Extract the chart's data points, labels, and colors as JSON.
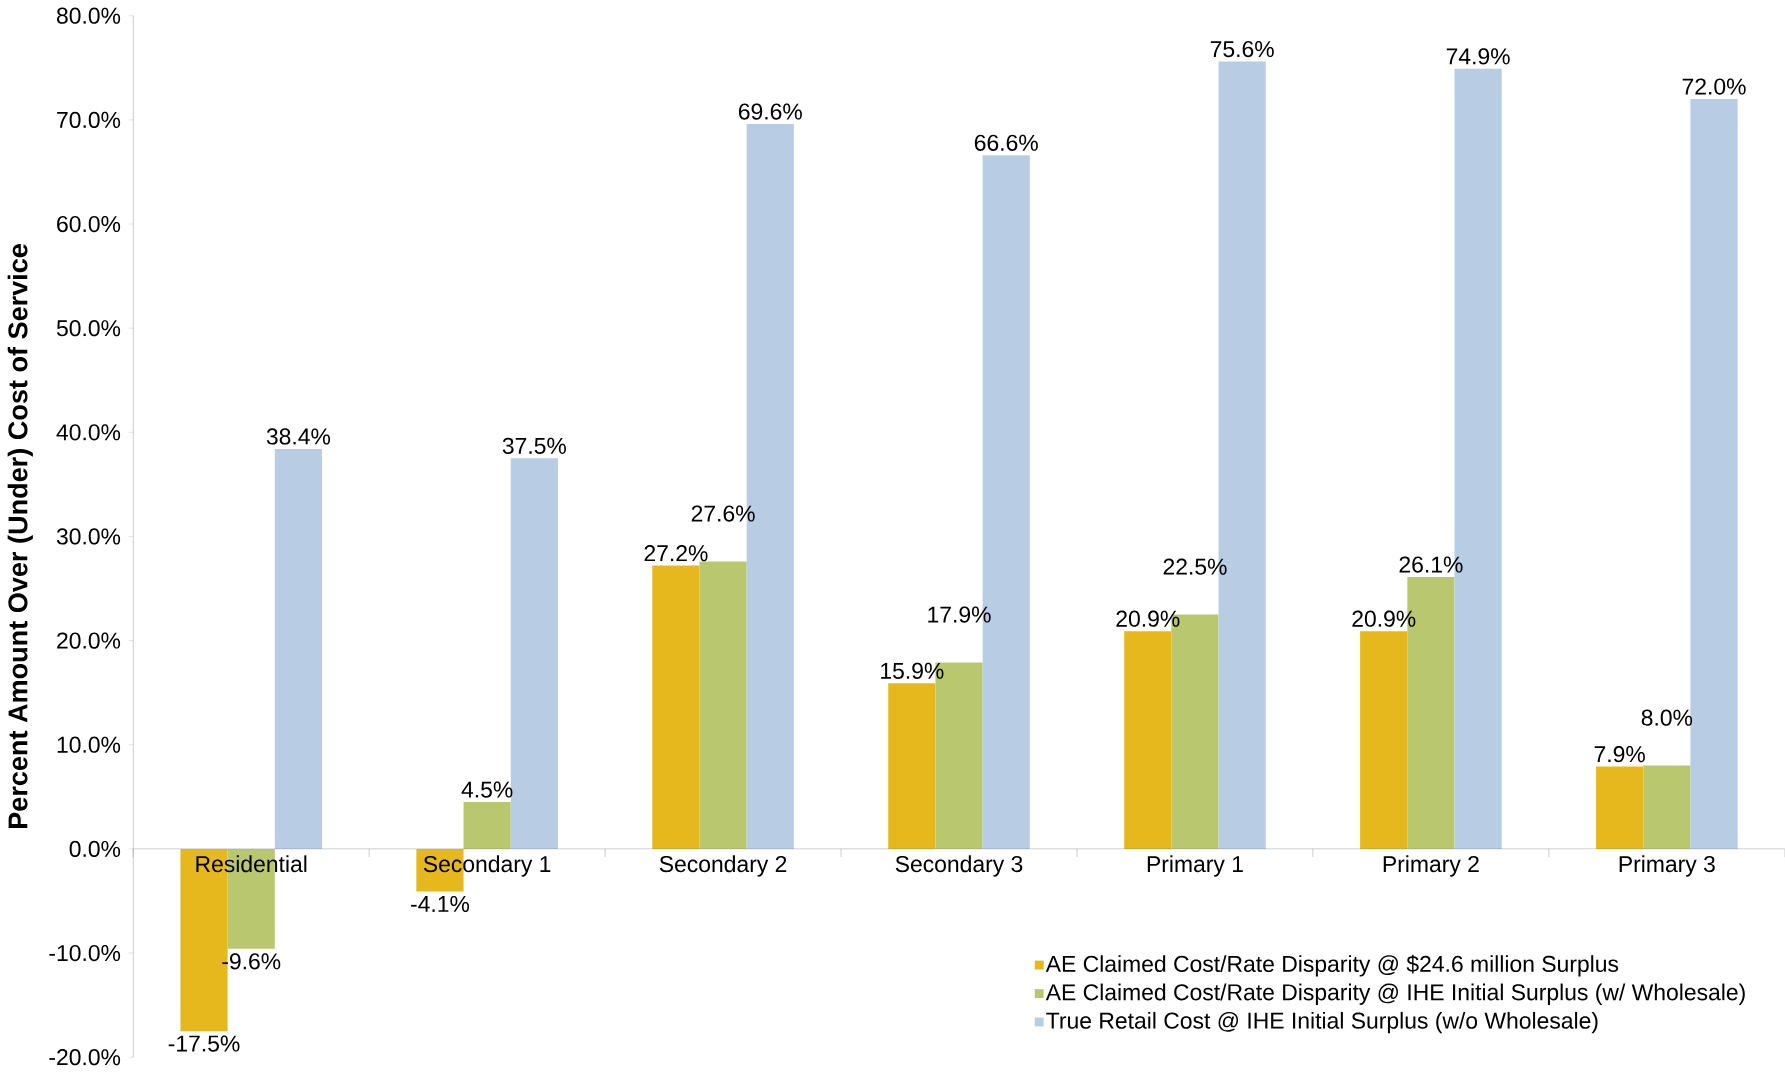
{
  "chart_data": {
    "type": "bar",
    "ylabel": "Percent Amount Over (Under) Cost of Service",
    "categories": [
      "Residential",
      "Secondary 1",
      "Secondary 2",
      "Secondary 3",
      "Primary 1",
      "Primary 2",
      "Primary 3"
    ],
    "series": [
      {
        "name": "AE Claimed Cost/Rate Disparity @ $24.6 million Surplus",
        "color": "#e6b81e",
        "values": [
          -17.5,
          -4.1,
          27.2,
          15.9,
          20.9,
          20.9,
          7.9
        ],
        "value_labels": [
          "-17.5%",
          "-4.1%",
          "27.2%",
          "15.9%",
          "20.9%",
          "20.9%",
          "7.9%"
        ]
      },
      {
        "name": "AE Claimed Cost/Rate Disparity @ IHE Initial Surplus (w/ Wholesale)",
        "color": "#b9c86e",
        "values": [
          -9.6,
          4.5,
          27.6,
          17.9,
          22.5,
          26.1,
          8.0
        ],
        "value_labels": [
          "-9.6%",
          "4.5%",
          "27.6%",
          "17.9%",
          "22.5%",
          "26.1%",
          "8.0%"
        ]
      },
      {
        "name": "True Retail Cost @ IHE Initial Surplus (w/o Wholesale)",
        "color": "#b8cce4",
        "values": [
          38.4,
          37.5,
          69.6,
          66.6,
          75.6,
          74.9,
          72.0
        ],
        "value_labels": [
          "38.4%",
          "37.5%",
          "69.6%",
          "66.6%",
          "75.6%",
          "74.9%",
          "72.0%"
        ]
      }
    ],
    "ylim": [
      -20,
      80
    ],
    "yticks": [
      {
        "value": -20,
        "label": "-20.0%"
      },
      {
        "value": -10,
        "label": "-10.0%"
      },
      {
        "value": 0,
        "label": "0.0%"
      },
      {
        "value": 10,
        "label": "10.0%"
      },
      {
        "value": 20,
        "label": "20.0%"
      },
      {
        "value": 30,
        "label": "30.0%"
      },
      {
        "value": 40,
        "label": "40.0%"
      },
      {
        "value": 50,
        "label": "50.0%"
      },
      {
        "value": 60,
        "label": "60.0%"
      },
      {
        "value": 70,
        "label": "70.0%"
      },
      {
        "value": 80,
        "label": "80.0%"
      }
    ],
    "legend": "bottom right",
    "grid": false
  }
}
